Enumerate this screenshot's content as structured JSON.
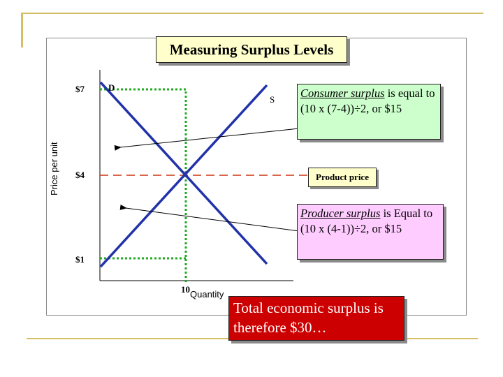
{
  "title": "Measuring Surplus Levels",
  "axes": {
    "ylabel": "Price per unit",
    "xlabel": "Quantity"
  },
  "prices": {
    "p7": "$7",
    "p4": "$4",
    "p1": "$1"
  },
  "quantity_tick": "10",
  "curve_labels": {
    "demand": "D",
    "supply": "S"
  },
  "consumer_callout": {
    "term": "Consumer surplus",
    "rest": " is equal to (10 x (7-4))÷2, or $15"
  },
  "producer_callout": {
    "term": "Producer surplus",
    "rest": " is Equal to (10 x (4-1))÷2, or $15"
  },
  "product_price_label": "Product price",
  "total_text": "Total economic surplus is therefore $30…",
  "colors": {
    "curves": "#2233aa",
    "dotted_guides": "#22aa22",
    "price_line": "#cc3311",
    "consumer_box": "#ccffcc",
    "producer_box": "#ffccff",
    "total_box": "#cc0000",
    "title_box": "#ffffcc"
  }
}
